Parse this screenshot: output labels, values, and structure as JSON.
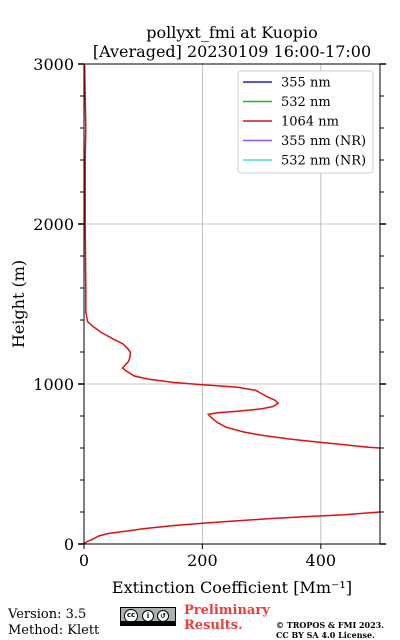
{
  "chart_data": {
    "type": "line",
    "title_line1": "pollyxt_fmi at Kuopio",
    "title_line2": "[Averaged] 20230109 16:00-17:00",
    "xlabel": "Extinction Coefficient [Mm⁻¹]",
    "ylabel": "Height (m)",
    "xlim": [
      0,
      500
    ],
    "ylim": [
      0,
      3000
    ],
    "x_ticks": [
      "0",
      "200",
      "400"
    ],
    "y_ticks": [
      "0",
      "1000",
      "2000",
      "3000"
    ],
    "grid": true,
    "legend_position": "top-right",
    "series": [
      {
        "name": "355 nm",
        "color": "#1f1fd6",
        "points": []
      },
      {
        "name": "532 nm",
        "color": "#22b422",
        "points": []
      },
      {
        "name": "1064 nm",
        "color": "#dd1111",
        "points": [
          [
            0,
            0
          ],
          [
            5,
            15
          ],
          [
            15,
            30
          ],
          [
            25,
            50
          ],
          [
            40,
            65
          ],
          [
            60,
            75
          ],
          [
            100,
            95
          ],
          [
            150,
            115
          ],
          [
            200,
            130
          ],
          [
            260,
            145
          ],
          [
            320,
            160
          ],
          [
            380,
            172
          ],
          [
            440,
            183
          ],
          [
            500,
            200
          ],
          [
            500,
            600
          ],
          [
            480,
            605
          ],
          [
            440,
            620
          ],
          [
            400,
            635
          ],
          [
            350,
            655
          ],
          [
            300,
            680
          ],
          [
            270,
            700
          ],
          [
            240,
            730
          ],
          [
            225,
            760
          ],
          [
            215,
            790
          ],
          [
            210,
            810
          ],
          [
            225,
            820
          ],
          [
            260,
            830
          ],
          [
            300,
            845
          ],
          [
            320,
            860
          ],
          [
            328,
            880
          ],
          [
            322,
            900
          ],
          [
            310,
            920
          ],
          [
            300,
            940
          ],
          [
            290,
            960
          ],
          [
            260,
            980
          ],
          [
            200,
            995
          ],
          [
            150,
            1010
          ],
          [
            110,
            1030
          ],
          [
            85,
            1050
          ],
          [
            72,
            1080
          ],
          [
            65,
            1100
          ],
          [
            70,
            1120
          ],
          [
            75,
            1140
          ],
          [
            77,
            1160
          ],
          [
            78,
            1180
          ],
          [
            78,
            1200
          ],
          [
            74,
            1220
          ],
          [
            66,
            1250
          ],
          [
            50,
            1280
          ],
          [
            30,
            1320
          ],
          [
            15,
            1360
          ],
          [
            6,
            1390
          ],
          [
            3,
            1450
          ],
          [
            3,
            1600
          ],
          [
            2,
            2000
          ],
          [
            2,
            2400
          ],
          [
            3,
            2600
          ],
          [
            2,
            2800
          ],
          [
            1,
            3000
          ]
        ]
      },
      {
        "name": "355 nm (NR)",
        "color": "#9b4ee8",
        "points": []
      },
      {
        "name": "532 nm (NR)",
        "color": "#3ee0d0",
        "points": []
      }
    ]
  },
  "footer": {
    "version": "Version: 3.5",
    "method": "Method: Klett",
    "license_badge": "cc by sa",
    "prelim_line1": "Preliminary",
    "prelim_line2": "Results.",
    "copyright_line1": "© TROPOS & FMI 2023.",
    "copyright_line2": "CC BY SA 4.0 License."
  }
}
